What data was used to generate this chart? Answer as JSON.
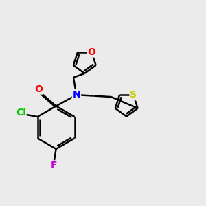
{
  "bg_color": "#ebebeb",
  "bond_color": "#000000",
  "atom_colors": {
    "O": "#ff0000",
    "N": "#0000ff",
    "S": "#cccc00",
    "Cl": "#00cc00",
    "F": "#cc00cc"
  },
  "lw": 1.8,
  "dbo": 0.05,
  "fs": 10,
  "fig_size": [
    3.0,
    3.0
  ],
  "dpi": 100,
  "xlim": [
    0,
    10
  ],
  "ylim": [
    0,
    10
  ]
}
